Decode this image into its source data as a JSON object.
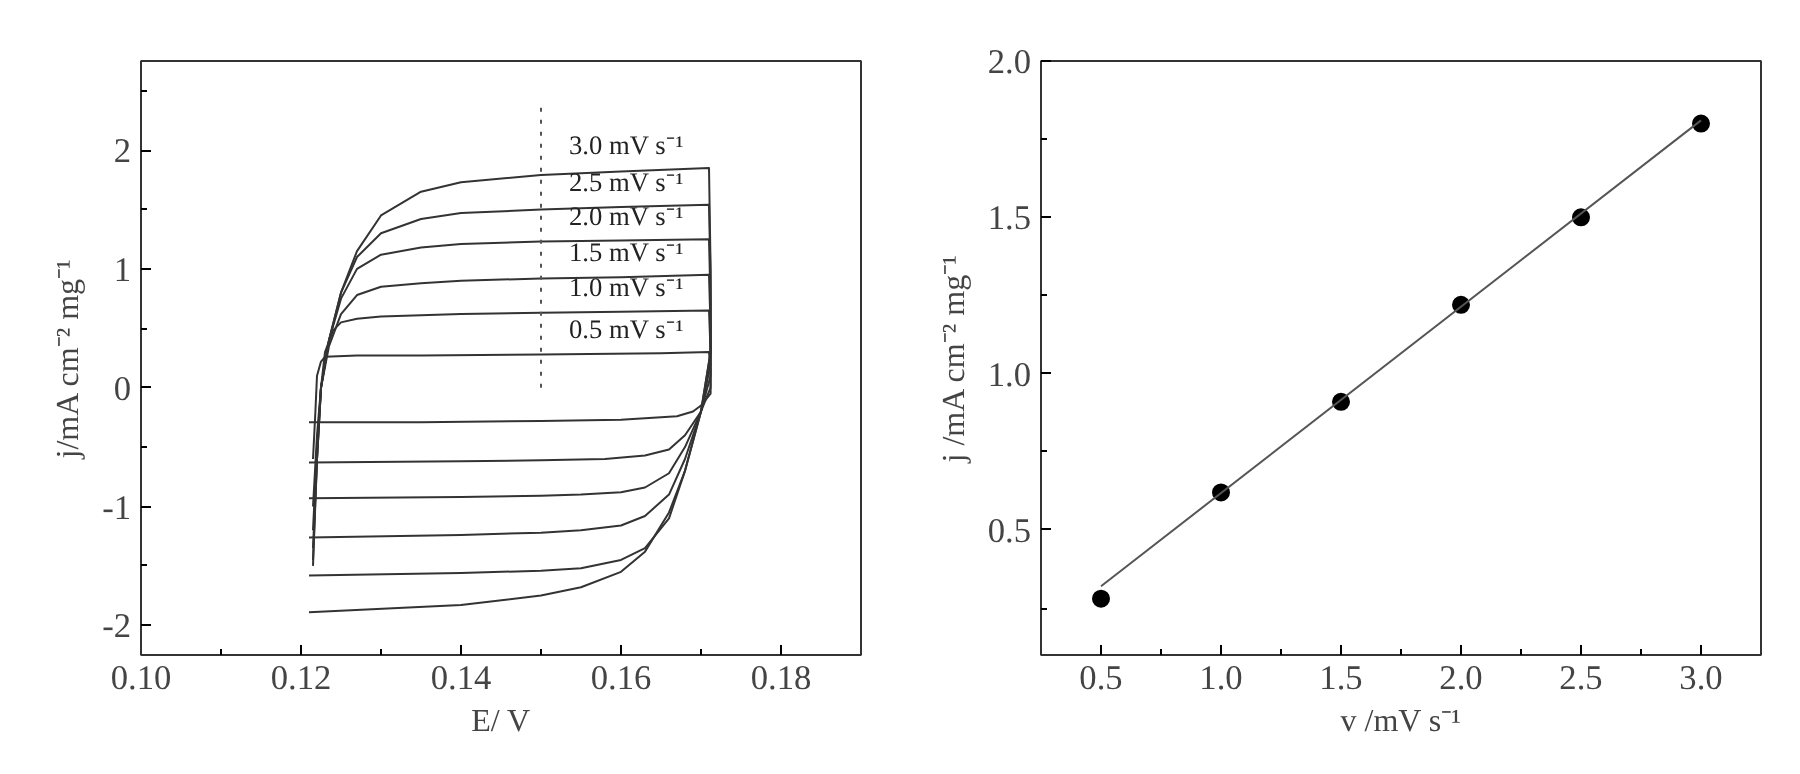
{
  "chart_data": [
    {
      "type": "line",
      "xlabel": "E/ V",
      "ylabel": "j/mA cm⁻² mg⁻¹",
      "xlim": [
        0.1,
        0.19
      ],
      "ylim": [
        -2.25,
        2.75
      ],
      "xticks": [
        {
          "value": 0.1,
          "label": "0.10"
        },
        {
          "value": 0.11,
          "label": null
        },
        0.12,
        {
          "value": 0.13,
          "label": null
        },
        0.14,
        {
          "value": 0.15,
          "label": null
        },
        0.16,
        {
          "value": 0.17,
          "label": null
        },
        0.18
      ],
      "yticks": [
        -2,
        {
          "value": -1.5,
          "label": null
        },
        -1,
        {
          "value": -0.5,
          "label": null
        },
        0,
        {
          "value": 0.5,
          "label": null
        },
        1,
        {
          "value": 1.5,
          "label": null
        },
        2,
        {
          "value": 2.5,
          "label": null
        }
      ],
      "grid": false,
      "marker": "none",
      "line_style": "solid",
      "series": [
        {
          "name": "0.5 mV s⁻¹",
          "color": "#333333",
          "x": [
            0.1215,
            0.1218,
            0.122,
            0.1225,
            0.123,
            0.127,
            0.135,
            0.15,
            0.165,
            0.171,
            0.1712,
            0.1712,
            0.17,
            0.169,
            0.167,
            0.16,
            0.15,
            0.135,
            0.121
          ],
          "values": [
            -0.6,
            -0.2,
            0.1,
            0.22,
            0.26,
            0.27,
            0.27,
            0.28,
            0.29,
            0.3,
            0.15,
            -0.05,
            -0.15,
            -0.2,
            -0.24,
            -0.27,
            -0.28,
            -0.29,
            -0.29
          ]
        },
        {
          "name": "1.0 mV s⁻¹",
          "color": "#333333",
          "x": [
            0.1215,
            0.122,
            0.1225,
            0.123,
            0.124,
            0.125,
            0.127,
            0.13,
            0.14,
            0.15,
            0.16,
            0.171,
            0.1712,
            0.1712,
            0.17,
            0.168,
            0.166,
            0.163,
            0.158,
            0.15,
            0.14,
            0.121
          ],
          "values": [
            -1.0,
            -0.4,
            0.0,
            0.3,
            0.48,
            0.55,
            0.58,
            0.6,
            0.62,
            0.63,
            0.64,
            0.65,
            0.3,
            0.0,
            -0.2,
            -0.4,
            -0.52,
            -0.57,
            -0.6,
            -0.61,
            -0.62,
            -0.63
          ]
        },
        {
          "name": "1.5 mV s⁻¹",
          "color": "#333333",
          "x": [
            0.1215,
            0.122,
            0.1225,
            0.1235,
            0.125,
            0.127,
            0.13,
            0.135,
            0.14,
            0.15,
            0.16,
            0.171,
            0.1712,
            0.1712,
            0.17,
            0.168,
            0.166,
            0.163,
            0.16,
            0.155,
            0.15,
            0.14,
            0.121
          ],
          "values": [
            -1.2,
            -0.5,
            0.0,
            0.35,
            0.62,
            0.78,
            0.85,
            0.88,
            0.9,
            0.92,
            0.93,
            0.95,
            0.5,
            0.1,
            -0.2,
            -0.5,
            -0.72,
            -0.84,
            -0.88,
            -0.9,
            -0.91,
            -0.92,
            -0.93
          ]
        },
        {
          "name": "2.0 mV s⁻¹",
          "color": "#333333",
          "x": [
            0.1215,
            0.122,
            0.1225,
            0.1235,
            0.125,
            0.127,
            0.13,
            0.135,
            0.14,
            0.15,
            0.16,
            0.171,
            0.1712,
            0.1712,
            0.17,
            0.168,
            0.166,
            0.163,
            0.16,
            0.155,
            0.15,
            0.14,
            0.121
          ],
          "values": [
            -1.35,
            -0.6,
            0.0,
            0.4,
            0.75,
            1.0,
            1.12,
            1.18,
            1.21,
            1.23,
            1.24,
            1.25,
            0.7,
            0.2,
            -0.2,
            -0.6,
            -0.9,
            -1.08,
            -1.16,
            -1.2,
            -1.22,
            -1.24,
            -1.26
          ]
        },
        {
          "name": "2.5 mV s⁻¹",
          "color": "#333333",
          "x": [
            0.1215,
            0.122,
            0.1225,
            0.1235,
            0.125,
            0.127,
            0.13,
            0.135,
            0.14,
            0.15,
            0.16,
            0.171,
            0.1712,
            0.1712,
            0.17,
            0.168,
            0.166,
            0.163,
            0.16,
            0.155,
            0.15,
            0.14,
            0.121
          ],
          "values": [
            -1.45,
            -0.6,
            0.0,
            0.4,
            0.8,
            1.1,
            1.3,
            1.42,
            1.47,
            1.5,
            1.52,
            1.54,
            0.9,
            0.3,
            -0.2,
            -0.7,
            -1.1,
            -1.35,
            -1.45,
            -1.52,
            -1.54,
            -1.56,
            -1.58
          ]
        },
        {
          "name": "3.0 mV s⁻¹",
          "color": "#333333",
          "x": [
            0.1215,
            0.122,
            0.1225,
            0.1235,
            0.125,
            0.127,
            0.13,
            0.135,
            0.14,
            0.15,
            0.16,
            0.171,
            0.1712,
            0.1712,
            0.17,
            0.168,
            0.166,
            0.163,
            0.16,
            0.155,
            0.15,
            0.14,
            0.121
          ],
          "values": [
            -1.5,
            -0.6,
            0.0,
            0.4,
            0.8,
            1.15,
            1.45,
            1.65,
            1.73,
            1.79,
            1.82,
            1.85,
            1.0,
            0.3,
            -0.2,
            -0.7,
            -1.05,
            -1.38,
            -1.55,
            -1.68,
            -1.75,
            -1.83,
            -1.89
          ]
        },
        {
          "color": "#555555",
          "x": [
            0.15,
            0.15
          ],
          "values": [
            0.0,
            2.4
          ],
          "line_style": "dotted"
        }
      ]
    },
    {
      "type": "scatter",
      "xlabel": "v /mV s⁻¹",
      "ylabel": "j /mA cm⁻² mg⁻¹",
      "xlim": [
        0.25,
        3.25
      ],
      "ylim": [
        0.1,
        2.0
      ],
      "xticks": [
        0.5,
        {
          "value": 0.75,
          "label": null
        },
        "1.0",
        {
          "value": 1.25,
          "label": null
        },
        1.5,
        {
          "value": 1.75,
          "label": null
        },
        "2.0",
        {
          "value": 2.25,
          "label": null
        },
        2.5,
        {
          "value": 2.75,
          "label": null
        },
        "3.0"
      ],
      "yticks": [
        {
          "value": 0.25,
          "label": null
        },
        0.5,
        {
          "value": 0.75,
          "label": null
        },
        {
          "value": 1.0,
          "label": "1.0"
        },
        {
          "value": 1.25,
          "label": null
        },
        1.5,
        {
          "value": 1.75,
          "label": null
        },
        {
          "value": 2.0,
          "label": "2.0"
        }
      ],
      "grid": false,
      "marker": "circle",
      "series": [
        {
          "color": "#000000",
          "x": [
            0.5,
            1.0,
            1.5,
            2.0,
            2.5,
            3.0
          ],
          "values": [
            0.28,
            0.62,
            0.91,
            1.22,
            1.5,
            1.8
          ]
        },
        {
          "type": "line",
          "color": "#555555",
          "x": [
            0.5,
            3.0
          ],
          "values": [
            0.32,
            1.81
          ],
          "marker": "none",
          "line_style": "solid"
        }
      ]
    }
  ]
}
